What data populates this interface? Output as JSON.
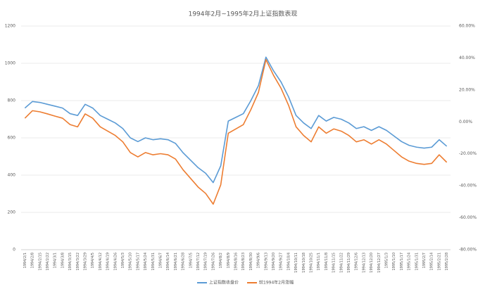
{
  "chart_data": {
    "type": "line",
    "title": "1994年2月~1995年2月上证指数表现",
    "categories": [
      "1994/2/1",
      "1994/2/8",
      "1994/2/15",
      "1994/2/22",
      "1994/3/1",
      "1994/3/8",
      "1994/3/15",
      "1994/3/22",
      "1994/3/29",
      "1994/4/5",
      "1994/4/12",
      "1994/4/19",
      "1994/4/26",
      "1994/5/3",
      "1994/5/10",
      "1994/5/17",
      "1994/5/24",
      "1994/5/31",
      "1994/6/7",
      "1994/6/14",
      "1994/6/21",
      "1994/6/28",
      "1994/7/5",
      "1994/7/12",
      "1994/7/19",
      "1994/7/26",
      "1994/8/2",
      "1994/8/9",
      "1994/8/16",
      "1994/8/23",
      "1994/8/30",
      "1994/9/6",
      "1994/9/13",
      "1994/9/20",
      "1994/9/27",
      "1994/10/4",
      "1994/10/11",
      "1994/10/18",
      "1994/10/25",
      "1994/11/1",
      "1994/11/8",
      "1994/11/15",
      "1994/11/22",
      "1994/11/29",
      "1994/12/6",
      "1994/12/13",
      "1994/12/20",
      "1994/12/27",
      "1995/1/3",
      "1995/1/10",
      "1995/1/17",
      "1995/1/24",
      "1995/1/31",
      "1995/2/7",
      "1995/2/14",
      "1995/2/21",
      "1995/2/28"
    ],
    "series": [
      {
        "name": "上证指数收盘价",
        "color": "#5b9bd5",
        "values": [
          760,
          795,
          790,
          780,
          770,
          760,
          730,
          720,
          780,
          760,
          720,
          700,
          680,
          650,
          600,
          580,
          600,
          590,
          595,
          590,
          570,
          520,
          480,
          440,
          410,
          360,
          450,
          690,
          710,
          730,
          800,
          880,
          1033,
          960,
          900,
          820,
          720,
          680,
          650,
          720,
          690,
          710,
          700,
          680,
          650,
          660,
          640,
          660,
          640,
          610,
          580,
          560,
          550,
          545,
          550,
          590,
          555
        ]
      },
      {
        "name": "较1994年2月涨幅",
        "color": "#ed7d31",
        "axis": "y2",
        "values": [
          2.3,
          7.0,
          6.3,
          5.0,
          3.6,
          2.3,
          -1.7,
          -3.1,
          5.0,
          2.3,
          -3.1,
          -5.8,
          -8.5,
          -12.5,
          -19.2,
          -21.9,
          -19.2,
          -20.6,
          -19.9,
          -20.6,
          -23.3,
          -30.0,
          -35.4,
          -40.8,
          -44.8,
          -51.5,
          -39.4,
          -7.1,
          -4.4,
          -1.7,
          7.7,
          18.4,
          39.0,
          29.2,
          21.1,
          10.4,
          -3.1,
          -8.5,
          -12.5,
          -3.1,
          -7.1,
          -4.4,
          -5.8,
          -8.5,
          -12.5,
          -11.2,
          -13.9,
          -11.2,
          -13.9,
          -17.9,
          -21.9,
          -24.6,
          -26.0,
          -26.6,
          -26.0,
          -20.6,
          -25.3
        ]
      }
    ],
    "ylim": [
      0,
      1200
    ],
    "yticks": [
      0,
      200,
      400,
      600,
      800,
      1000,
      1200
    ],
    "y2lim": [
      -80,
      60
    ],
    "y2ticks": [
      {
        "value": -80,
        "label": "-80.00%"
      },
      {
        "value": -60,
        "label": "-60.00%"
      },
      {
        "value": -40,
        "label": "-40.00%"
      },
      {
        "value": -20,
        "label": "-20.00%"
      },
      {
        "value": 0,
        "label": "0.00%"
      },
      {
        "value": 20,
        "label": "20.00%"
      },
      {
        "value": 40,
        "label": "40.00%"
      },
      {
        "value": 60,
        "label": "60.00%"
      }
    ],
    "grid": true,
    "legend": "bottom"
  }
}
